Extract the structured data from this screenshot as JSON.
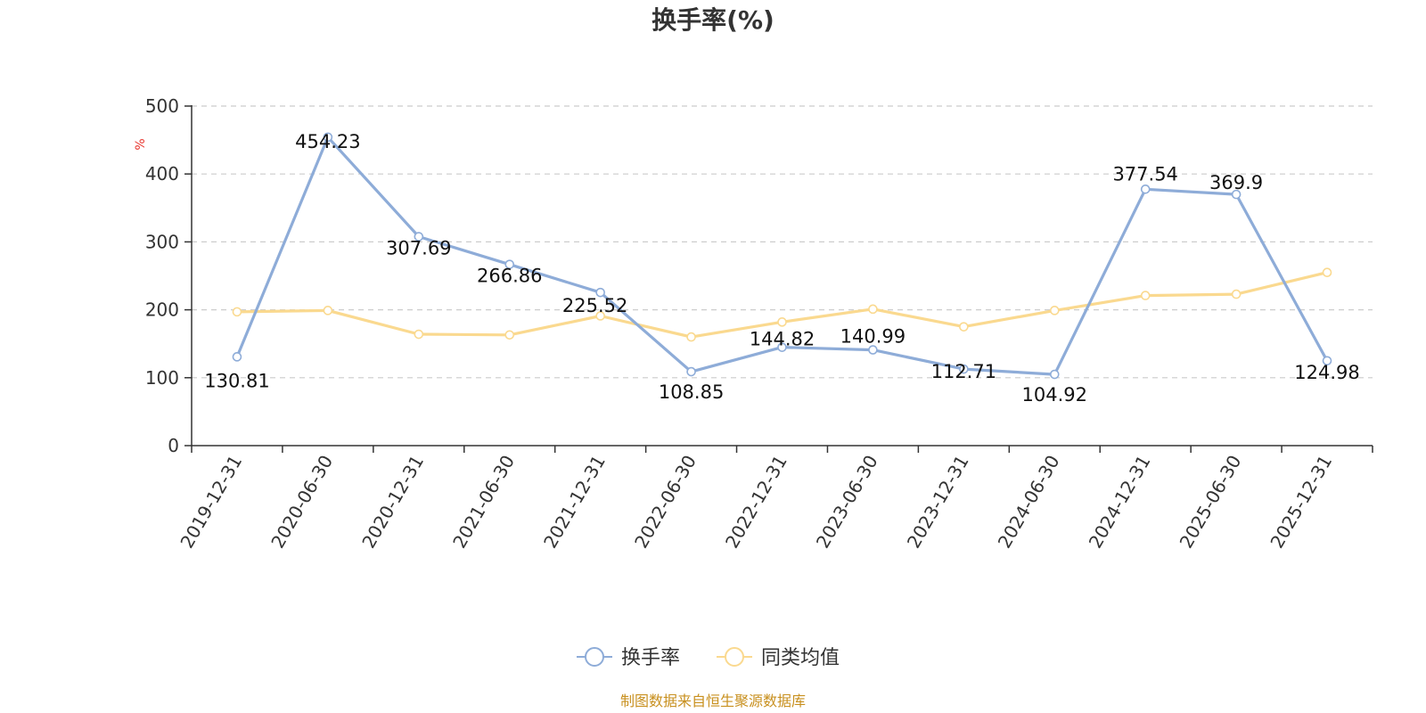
{
  "chart_data": {
    "type": "line",
    "title": "换手率(%)",
    "ylabel": "%",
    "xlabel": "",
    "ylim": [
      0,
      500
    ],
    "yticks": [
      0,
      100,
      200,
      300,
      400,
      500
    ],
    "grid": true,
    "legend_position": "bottom",
    "categories": [
      "2019-12-31",
      "2020-06-30",
      "2020-12-31",
      "2021-06-30",
      "2021-12-31",
      "2022-06-30",
      "2022-12-31",
      "2023-06-30",
      "2023-12-31",
      "2024-06-30",
      "2024-12-31",
      "2025-06-30",
      "2025-12-31"
    ],
    "series": [
      {
        "name": "换手率",
        "color": "#8eacd8",
        "values": [
          130.81,
          454.23,
          307.69,
          266.86,
          225.52,
          108.85,
          144.82,
          140.99,
          112.71,
          104.92,
          377.54,
          369.9,
          124.98
        ],
        "labels": [
          "130.81",
          "454.23",
          "307.69",
          "266.86",
          "225.52",
          "108.85",
          "144.82",
          "140.99",
          "112.71",
          "104.92",
          "377.54",
          "369.9",
          "124.98"
        ]
      },
      {
        "name": "同类均值",
        "color": "#fad98f",
        "values": [
          197,
          199,
          164,
          163,
          191,
          160,
          182,
          201,
          175,
          199,
          221,
          223,
          255
        ]
      }
    ]
  },
  "source_text": "制图数据来自恒生聚源数据库"
}
